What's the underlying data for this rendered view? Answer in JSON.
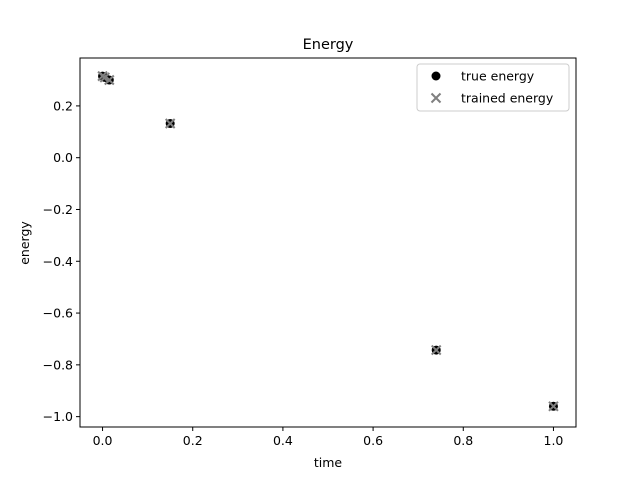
{
  "chart_data": {
    "type": "scatter",
    "title": "Energy",
    "xlabel": "time",
    "ylabel": "energy",
    "xlim": [
      -0.05,
      1.05
    ],
    "ylim": [
      -1.04,
      0.385
    ],
    "x_ticks": [
      0.0,
      0.2,
      0.4,
      0.6,
      0.8,
      1.0
    ],
    "x_tick_labels": [
      "0.0",
      "0.2",
      "0.4",
      "0.6",
      "0.8",
      "1.0"
    ],
    "y_ticks": [
      -1.0,
      -0.8,
      -0.6,
      -0.4,
      -0.2,
      0.0,
      0.2
    ],
    "y_tick_labels": [
      "−1.0",
      "−0.8",
      "−0.6",
      "−0.4",
      "−0.2",
      "0.0",
      "0.2"
    ],
    "grid": false,
    "legend_position": "top-right",
    "series": [
      {
        "name": "true energy",
        "marker": "circle",
        "color": "#000000",
        "x": [
          0.0,
          0.005,
          0.015,
          0.15,
          0.74,
          1.0
        ],
        "y": [
          0.315,
          0.31,
          0.3,
          0.132,
          -0.743,
          -0.96
        ]
      },
      {
        "name": "trained energy",
        "marker": "x",
        "color": "#808080",
        "x": [
          0.0,
          0.005,
          0.015,
          0.15,
          0.74,
          1.0
        ],
        "y": [
          0.315,
          0.31,
          0.3,
          0.132,
          -0.743,
          -0.96
        ]
      }
    ]
  }
}
